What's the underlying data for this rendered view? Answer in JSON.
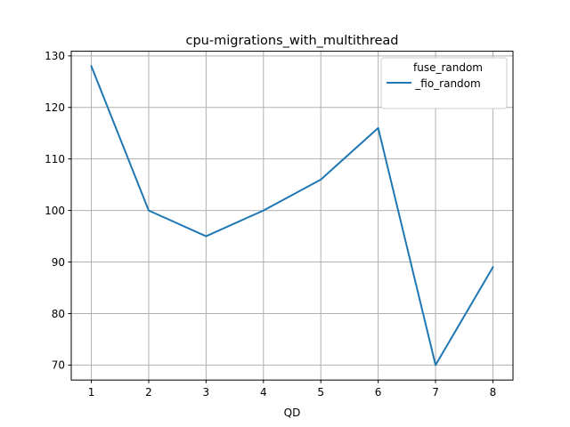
{
  "chart_data": {
    "type": "line",
    "title": "cpu-migrations_with_multithread",
    "xlabel": "QD",
    "ylabel": "",
    "x": [
      1,
      2,
      3,
      4,
      5,
      6,
      7,
      8
    ],
    "xticks": [
      1,
      2,
      3,
      4,
      5,
      6,
      7,
      8
    ],
    "xlim": [
      0.65,
      8.35
    ],
    "ylim": [
      67.1,
      130.9
    ],
    "yticks": [
      70,
      80,
      90,
      100,
      110,
      120,
      130
    ],
    "grid": true,
    "legend_position": "top-right",
    "series": [
      {
        "name": "fuse_random\n_fio_random",
        "name_lines": [
          "fuse_random",
          "_fio_random"
        ],
        "color": "#1f77b4",
        "values": [
          128,
          100,
          95,
          100,
          106,
          116,
          70,
          89
        ]
      }
    ]
  }
}
